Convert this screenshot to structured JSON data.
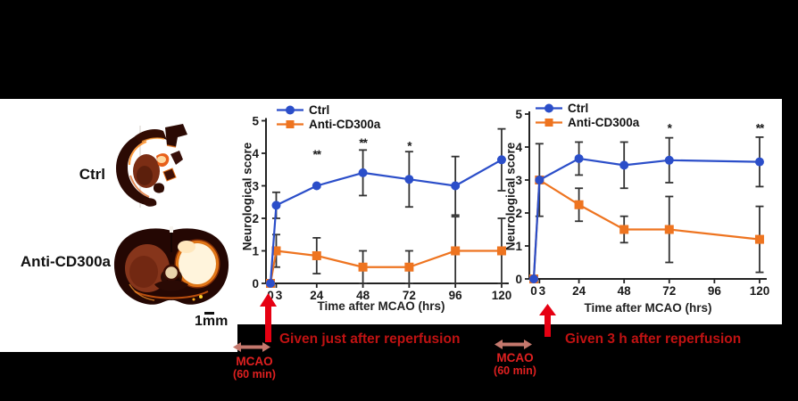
{
  "figure": {
    "left_panel": {
      "ctrl_label": "Ctrl",
      "anti_label": "Anti-CD300a",
      "scale_bar_label": "1mm"
    },
    "annotations": {
      "left_caption": "Given just after reperfusion",
      "right_caption": "Given 3 h after reperfusion",
      "mcao_left_line1": "MCAO",
      "mcao_left_line2": "(60 min)",
      "mcao_right_line1": "MCAO",
      "mcao_right_line2": "(60 min)"
    },
    "colors": {
      "ctrl_series": "#2b4ec9",
      "anti_series": "#ee7420",
      "reperfusion_arrow": "#e60012",
      "caption_text": "#c01212",
      "mcao_text": "#e02020",
      "mcao_arrow": "#c5786d",
      "error_bar": "#333333",
      "axis_text": "#1a1a1a",
      "panel_background": "#ffffff",
      "page_background": "#000000"
    }
  },
  "chart_data": [
    {
      "type": "line",
      "title": "",
      "xlabel": "Time after MCAO (hrs)",
      "ylabel": "Neurological score",
      "xlim": [
        0,
        120
      ],
      "ylim": [
        0,
        5
      ],
      "xticks": [
        0,
        3,
        24,
        48,
        72,
        96,
        120
      ],
      "yticks": [
        0,
        1,
        2,
        3,
        4,
        5
      ],
      "grid": false,
      "legend_position": "top-left",
      "series": [
        {
          "name": "Ctrl",
          "marker": "circle",
          "color": "#2b4ec9",
          "x": [
            0,
            3,
            24,
            48,
            72,
            96,
            120
          ],
          "y": [
            0,
            2.4,
            3.0,
            3.4,
            3.2,
            3.0,
            3.8
          ],
          "err": [
            0,
            0.4,
            0,
            0.7,
            0.85,
            0.9,
            0.95
          ]
        },
        {
          "name": "Anti-CD300a",
          "marker": "square",
          "color": "#ee7420",
          "x": [
            0,
            3,
            24,
            48,
            72,
            96,
            120
          ],
          "y": [
            0,
            1.0,
            0.85,
            0.5,
            0.5,
            1.0,
            1.0
          ],
          "err": [
            0,
            0.5,
            0.55,
            0.5,
            0.5,
            1.05,
            1.0
          ]
        }
      ],
      "significance": [
        {
          "x": 24,
          "y": 3.95,
          "label": "**"
        },
        {
          "x": 48,
          "y": 4.3,
          "label": "**"
        },
        {
          "x": 72,
          "y": 4.2,
          "label": "*"
        }
      ]
    },
    {
      "type": "line",
      "title": "",
      "xlabel": "Time after MCAO (hrs)",
      "ylabel": "Neurological score",
      "xlim": [
        0,
        120
      ],
      "ylim": [
        0,
        5
      ],
      "xticks": [
        0,
        3,
        24,
        48,
        72,
        96,
        120
      ],
      "yticks": [
        0,
        1,
        2,
        3,
        4,
        5
      ],
      "grid": false,
      "legend_position": "top-left",
      "series": [
        {
          "name": "Ctrl",
          "marker": "circle",
          "color": "#2b4ec9",
          "x": [
            0,
            3,
            24,
            48,
            72,
            120
          ],
          "y": [
            0,
            3.0,
            3.65,
            3.45,
            3.6,
            3.55
          ],
          "err": [
            0,
            1.1,
            0.5,
            0.7,
            0.68,
            0.75
          ]
        },
        {
          "name": "Anti-CD300a",
          "marker": "square",
          "color": "#ee7420",
          "x": [
            0,
            3,
            24,
            48,
            72,
            120
          ],
          "y": [
            0,
            3.0,
            2.25,
            1.5,
            1.5,
            1.2
          ],
          "err": [
            0,
            0,
            0.5,
            0.4,
            1.0,
            1.0
          ]
        }
      ],
      "significance": [
        {
          "x": 72,
          "y": 4.55,
          "label": "*"
        },
        {
          "x": 120,
          "y": 4.55,
          "label": "**"
        }
      ]
    }
  ]
}
